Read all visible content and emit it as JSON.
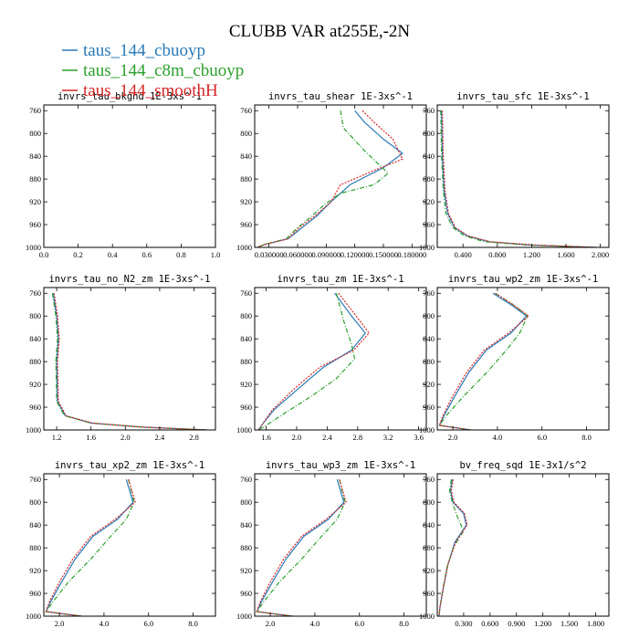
{
  "figure": {
    "title": "CLUBB VAR at255E,-2N",
    "legend": [
      {
        "label": "taus_144_cbuoyp",
        "color": "#2a7ab8"
      },
      {
        "label": "taus_144_c8m_cbuoyp",
        "color": "#2ca02c"
      },
      {
        "label": "taus_144_smoothH",
        "color": "#d62728"
      }
    ]
  },
  "chart_data": [
    {
      "type": "line",
      "title": "invrs_tau_bkgnd  1E-3xs^-1",
      "xlim": [
        0,
        1
      ],
      "ylim": [
        1000,
        750
      ],
      "xticks": [
        0,
        0.2,
        0.4,
        0.6,
        0.8,
        1.0
      ],
      "xtick_labels": [
        "0.0",
        "0.2",
        "0.4",
        "0.6",
        "0.8",
        "1.0"
      ],
      "yticks": [
        760,
        800,
        840,
        880,
        920,
        960,
        1000
      ],
      "ytick_labels": [
        "760",
        "800",
        "840",
        "880",
        "920",
        "960",
        "1000"
      ],
      "series": [
        {
          "color": "#2a7ab8",
          "x": [],
          "y": []
        },
        {
          "color": "#2ca02c",
          "x": [],
          "y": []
        },
        {
          "color": "#d62728",
          "x": [],
          "y": []
        }
      ]
    },
    {
      "type": "line",
      "title": "invrs_tau_shear  1E-3xs^-1",
      "xlim": [
        0.015,
        0.195
      ],
      "ylim": [
        1000,
        750
      ],
      "xticks": [
        0.03,
        0.06,
        0.09,
        0.12,
        0.15,
        0.18
      ],
      "xtick_labels": [
        "0.030000",
        "0.060000",
        "0.090000",
        "0.120000",
        "0.150000",
        "0.180000"
      ],
      "yticks": [
        760,
        800,
        840,
        880,
        920,
        960,
        1000
      ],
      "ytick_labels": [
        "760",
        "800",
        "840",
        "880",
        "920",
        "960",
        "1000"
      ],
      "series": [
        {
          "color": "#2a7ab8",
          "x": [
            0.12,
            0.13,
            0.15,
            0.17,
            0.15,
            0.115,
            0.095,
            0.08,
            0.065,
            0.05,
            0.025,
            0.018
          ],
          "y": [
            760,
            780,
            810,
            835,
            860,
            890,
            920,
            945,
            965,
            985,
            995,
            1000
          ]
        },
        {
          "color": "#2ca02c",
          "x": [
            0.105,
            0.108,
            0.13,
            0.155,
            0.14,
            0.105,
            0.088,
            0.075,
            0.06,
            0.048,
            0.025,
            0.018
          ],
          "y": [
            760,
            790,
            830,
            870,
            890,
            905,
            925,
            945,
            965,
            985,
            995,
            1000
          ]
        },
        {
          "color": "#d62728",
          "x": [
            0.128,
            0.14,
            0.16,
            0.17,
            0.14,
            0.105,
            0.095,
            0.078,
            0.062,
            0.05,
            0.025,
            0.018
          ],
          "y": [
            760,
            780,
            810,
            845,
            865,
            890,
            920,
            945,
            965,
            985,
            995,
            1000
          ]
        }
      ]
    },
    {
      "type": "line",
      "title": "invrs_tau_sfc  1E-3xs^-1",
      "xlim": [
        0.1,
        2.1
      ],
      "ylim": [
        1000,
        750
      ],
      "xticks": [
        0.4,
        0.8,
        1.2,
        1.6,
        2.0
      ],
      "xtick_labels": [
        "0.400",
        "0.800",
        "1.200",
        "1.600",
        "2.000"
      ],
      "yticks": [
        760,
        800,
        840,
        880,
        920,
        960,
        1000
      ],
      "ytick_labels": [
        "760",
        "800",
        "840",
        "880",
        "920",
        "960",
        "1000"
      ],
      "series": [
        {
          "color": "#2a7ab8",
          "x": [
            0.15,
            0.16,
            0.18,
            0.22,
            0.3,
            0.45,
            0.7,
            1.2,
            1.95
          ],
          "y": [
            760,
            840,
            900,
            940,
            965,
            980,
            990,
            996,
            1000
          ]
        },
        {
          "color": "#2ca02c",
          "x": [
            0.14,
            0.15,
            0.17,
            0.2,
            0.28,
            0.42,
            0.65,
            1.15,
            1.95
          ],
          "y": [
            760,
            840,
            900,
            940,
            965,
            980,
            990,
            996,
            1000
          ]
        },
        {
          "color": "#d62728",
          "x": [
            0.16,
            0.17,
            0.19,
            0.23,
            0.31,
            0.46,
            0.72,
            1.25,
            1.95
          ],
          "y": [
            760,
            840,
            900,
            940,
            965,
            980,
            990,
            996,
            1000
          ]
        }
      ]
    },
    {
      "type": "line",
      "title": "invrs_tau_no_N2_zm  1E-3xs^-1",
      "xlim": [
        1.05,
        3.05
      ],
      "ylim": [
        1000,
        750
      ],
      "xticks": [
        1.2,
        1.6,
        2.0,
        2.4,
        2.8
      ],
      "xtick_labels": [
        "1.2",
        "1.6",
        "2.0",
        "2.4",
        "2.8"
      ],
      "yticks": [
        760,
        800,
        840,
        880,
        920,
        960,
        1000
      ],
      "ytick_labels": [
        "760",
        "800",
        "840",
        "880",
        "920",
        "960",
        "1000"
      ],
      "series": [
        {
          "color": "#2a7ab8",
          "x": [
            1.16,
            1.2,
            1.22,
            1.2,
            1.21,
            1.3,
            1.6,
            2.2,
            2.95
          ],
          "y": [
            760,
            800,
            840,
            880,
            950,
            975,
            988,
            995,
            1000
          ]
        },
        {
          "color": "#2ca02c",
          "x": [
            1.15,
            1.19,
            1.21,
            1.19,
            1.2,
            1.29,
            1.6,
            2.2,
            2.95
          ],
          "y": [
            760,
            800,
            840,
            880,
            950,
            975,
            988,
            995,
            1000
          ]
        },
        {
          "color": "#d62728",
          "x": [
            1.17,
            1.21,
            1.23,
            1.21,
            1.22,
            1.31,
            1.62,
            2.2,
            2.95
          ],
          "y": [
            760,
            800,
            840,
            880,
            950,
            975,
            988,
            995,
            1000
          ]
        }
      ]
    },
    {
      "type": "line",
      "title": "invrs_tau_zm  1E-3xs^-1",
      "xlim": [
        1.45,
        3.7
      ],
      "ylim": [
        1000,
        750
      ],
      "xticks": [
        1.6,
        2.0,
        2.4,
        2.8,
        3.2,
        3.6
      ],
      "xtick_labels": [
        "1.6",
        "2.0",
        "2.4",
        "2.8",
        "3.2",
        "3.6"
      ],
      "yticks": [
        760,
        800,
        840,
        880,
        920,
        960,
        1000
      ],
      "ytick_labels": [
        "760",
        "800",
        "840",
        "880",
        "920",
        "960",
        "1000"
      ],
      "series": [
        {
          "color": "#2a7ab8",
          "x": [
            2.5,
            2.72,
            2.9,
            2.72,
            2.35,
            2.0,
            1.7,
            1.55,
            1.5
          ],
          "y": [
            760,
            800,
            830,
            860,
            890,
            930,
            965,
            990,
            1000
          ]
        },
        {
          "color": "#2ca02c",
          "x": [
            2.52,
            2.62,
            2.72,
            2.76,
            2.52,
            2.2,
            1.85,
            1.6,
            1.5
          ],
          "y": [
            760,
            810,
            850,
            875,
            910,
            940,
            970,
            992,
            1000
          ]
        },
        {
          "color": "#d62728",
          "x": [
            2.55,
            2.78,
            2.95,
            2.75,
            2.3,
            1.95,
            1.68,
            1.55,
            1.5
          ],
          "y": [
            760,
            800,
            830,
            860,
            890,
            930,
            965,
            990,
            1000
          ]
        }
      ]
    },
    {
      "type": "line",
      "title": "invrs_tau_wp2_zm  1E-3xs^-1",
      "xlim": [
        1.3,
        9.0
      ],
      "ylim": [
        1000,
        750
      ],
      "xticks": [
        2.0,
        4.0,
        6.0,
        8.0
      ],
      "xtick_labels": [
        "2.0",
        "4.0",
        "6.0",
        "8.0"
      ],
      "yticks": [
        760,
        800,
        840,
        880,
        920,
        960,
        1000
      ],
      "ytick_labels": [
        "760",
        "800",
        "840",
        "880",
        "920",
        "960",
        "1000"
      ],
      "series": [
        {
          "color": "#2a7ab8",
          "x": [
            3.8,
            4.6,
            5.3,
            4.6,
            3.5,
            2.7,
            2.1,
            1.6,
            1.4,
            2.8
          ],
          "y": [
            760,
            780,
            800,
            830,
            860,
            900,
            940,
            975,
            992,
            1000
          ]
        },
        {
          "color": "#2ca02c",
          "x": [
            3.9,
            4.7,
            5.35,
            5.0,
            4.4,
            3.5,
            2.5,
            1.7,
            1.4,
            2.8
          ],
          "y": [
            760,
            780,
            800,
            830,
            860,
            900,
            940,
            975,
            992,
            1000
          ]
        },
        {
          "color": "#d62728",
          "x": [
            3.9,
            4.7,
            5.4,
            4.5,
            3.4,
            2.6,
            2.0,
            1.55,
            1.4,
            2.8
          ],
          "y": [
            760,
            780,
            800,
            830,
            860,
            900,
            940,
            975,
            992,
            1000
          ]
        }
      ]
    },
    {
      "type": "line",
      "title": "invrs_tau_xp2_zm  1E-3xs^-1",
      "xlim": [
        1.3,
        9.0
      ],
      "ylim": [
        1000,
        750
      ],
      "xticks": [
        2.0,
        4.0,
        6.0,
        8.0
      ],
      "xtick_labels": [
        "2.0",
        "4.0",
        "6.0",
        "8.0"
      ],
      "yticks": [
        760,
        800,
        840,
        880,
        920,
        960,
        1000
      ],
      "ytick_labels": [
        "760",
        "800",
        "840",
        "880",
        "920",
        "960",
        "1000"
      ],
      "series": [
        {
          "color": "#2a7ab8",
          "x": [
            5.0,
            5.3,
            4.6,
            3.5,
            2.7,
            2.1,
            1.6,
            1.4,
            3.0
          ],
          "y": [
            760,
            800,
            830,
            860,
            900,
            940,
            975,
            992,
            1000
          ]
        },
        {
          "color": "#2ca02c",
          "x": [
            5.1,
            5.35,
            5.0,
            4.3,
            3.4,
            2.4,
            1.7,
            1.4,
            3.0
          ],
          "y": [
            760,
            800,
            830,
            860,
            900,
            940,
            975,
            992,
            1000
          ]
        },
        {
          "color": "#d62728",
          "x": [
            5.1,
            5.4,
            4.5,
            3.4,
            2.6,
            2.0,
            1.55,
            1.4,
            3.0
          ],
          "y": [
            760,
            800,
            830,
            860,
            900,
            940,
            975,
            992,
            1000
          ]
        }
      ]
    },
    {
      "type": "line",
      "title": "invrs_tau_wp3_zm  1E-3xs^-1",
      "xlim": [
        1.3,
        9.0
      ],
      "ylim": [
        1000,
        750
      ],
      "xticks": [
        2.0,
        4.0,
        6.0,
        8.0
      ],
      "xtick_labels": [
        "2.0",
        "4.0",
        "6.0",
        "8.0"
      ],
      "yticks": [
        760,
        800,
        840,
        880,
        920,
        960,
        1000
      ],
      "ytick_labels": [
        "760",
        "800",
        "840",
        "880",
        "920",
        "960",
        "1000"
      ],
      "series": [
        {
          "color": "#2a7ab8",
          "x": [
            5.0,
            5.3,
            4.6,
            3.5,
            2.7,
            2.1,
            1.6,
            1.4,
            3.0
          ],
          "y": [
            760,
            800,
            830,
            860,
            900,
            940,
            975,
            992,
            1000
          ]
        },
        {
          "color": "#2ca02c",
          "x": [
            5.1,
            5.35,
            5.0,
            4.3,
            3.4,
            2.4,
            1.7,
            1.4,
            3.0
          ],
          "y": [
            760,
            800,
            830,
            860,
            900,
            940,
            975,
            992,
            1000
          ]
        },
        {
          "color": "#d62728",
          "x": [
            5.1,
            5.4,
            4.5,
            3.4,
            2.6,
            2.0,
            1.55,
            1.4,
            3.0
          ],
          "y": [
            760,
            800,
            830,
            860,
            900,
            940,
            975,
            992,
            1000
          ]
        }
      ]
    },
    {
      "type": "line",
      "title": "bv_freq_sqd  1E-3x1/s^2",
      "xlim": [
        0.0,
        1.95
      ],
      "ylim": [
        1000,
        750
      ],
      "xticks": [
        0.3,
        0.6,
        0.9,
        1.2,
        1.5,
        1.8
      ],
      "xtick_labels": [
        "0.300",
        "0.600",
        "0.900",
        "1.200",
        "1.500",
        "1.800"
      ],
      "yticks": [
        760,
        800,
        840,
        880,
        920,
        960,
        1000
      ],
      "ytick_labels": [
        "760",
        "800",
        "840",
        "880",
        "920",
        "960",
        "1000"
      ],
      "series": [
        {
          "color": "#2a7ab8",
          "x": [
            0.17,
            0.15,
            0.18,
            0.3,
            0.33,
            0.2,
            0.12,
            0.07,
            0.03,
            0.02
          ],
          "y": [
            760,
            780,
            800,
            820,
            840,
            870,
            910,
            950,
            985,
            1000
          ]
        },
        {
          "color": "#2ca02c",
          "x": [
            0.16,
            0.14,
            0.17,
            0.24,
            0.3,
            0.18,
            0.11,
            0.06,
            0.03,
            0.02
          ],
          "y": [
            760,
            780,
            800,
            830,
            850,
            880,
            915,
            955,
            985,
            1000
          ]
        },
        {
          "color": "#d62728",
          "x": [
            0.18,
            0.16,
            0.19,
            0.31,
            0.34,
            0.21,
            0.12,
            0.07,
            0.03,
            0.02
          ],
          "y": [
            760,
            780,
            800,
            820,
            840,
            870,
            910,
            950,
            985,
            1000
          ]
        }
      ]
    }
  ]
}
